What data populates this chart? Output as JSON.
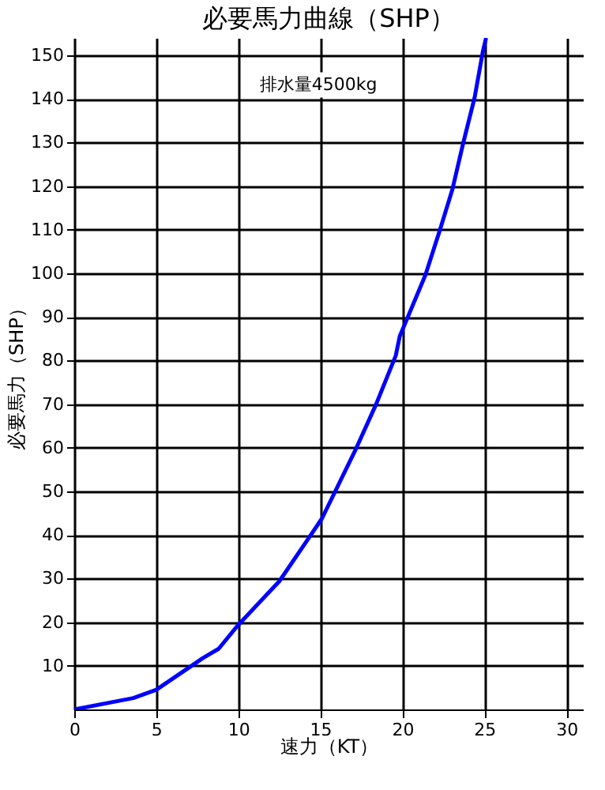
{
  "chart_data": {
    "type": "line",
    "title": "必要馬力曲線（SHP）",
    "xlabel": "速力（KT）",
    "ylabel": "必要馬力（SHP）",
    "annotations": [
      "排水量4500kg"
    ],
    "series": [
      {
        "color": "#0000ff",
        "x": [
          0,
          3.6,
          5,
          7.85,
          8.8,
          10.0,
          12.5,
          14.2,
          15.1,
          17.2,
          18.4,
          19.6,
          19.84,
          21.4,
          22.3,
          23.05,
          23.7,
          24.4,
          24.9,
          25.1
        ],
        "values": [
          0,
          2.6,
          4.5,
          11.8,
          13.9,
          19.4,
          29.4,
          38.8,
          43.8,
          60,
          70,
          81.2,
          85.6,
          99.6,
          110.1,
          119.3,
          129.8,
          140.3,
          150.8,
          154
        ]
      }
    ],
    "xlim": [
      0,
      31
    ],
    "xticks": [
      0,
      5,
      10,
      15,
      20,
      25,
      30
    ],
    "ylim": [
      0,
      154
    ],
    "yticks": [
      10,
      20,
      30,
      40,
      50,
      60,
      70,
      80,
      90,
      100,
      110,
      120,
      130,
      140,
      150
    ],
    "grid": true,
    "marker": "none",
    "line_style": "solid"
  }
}
